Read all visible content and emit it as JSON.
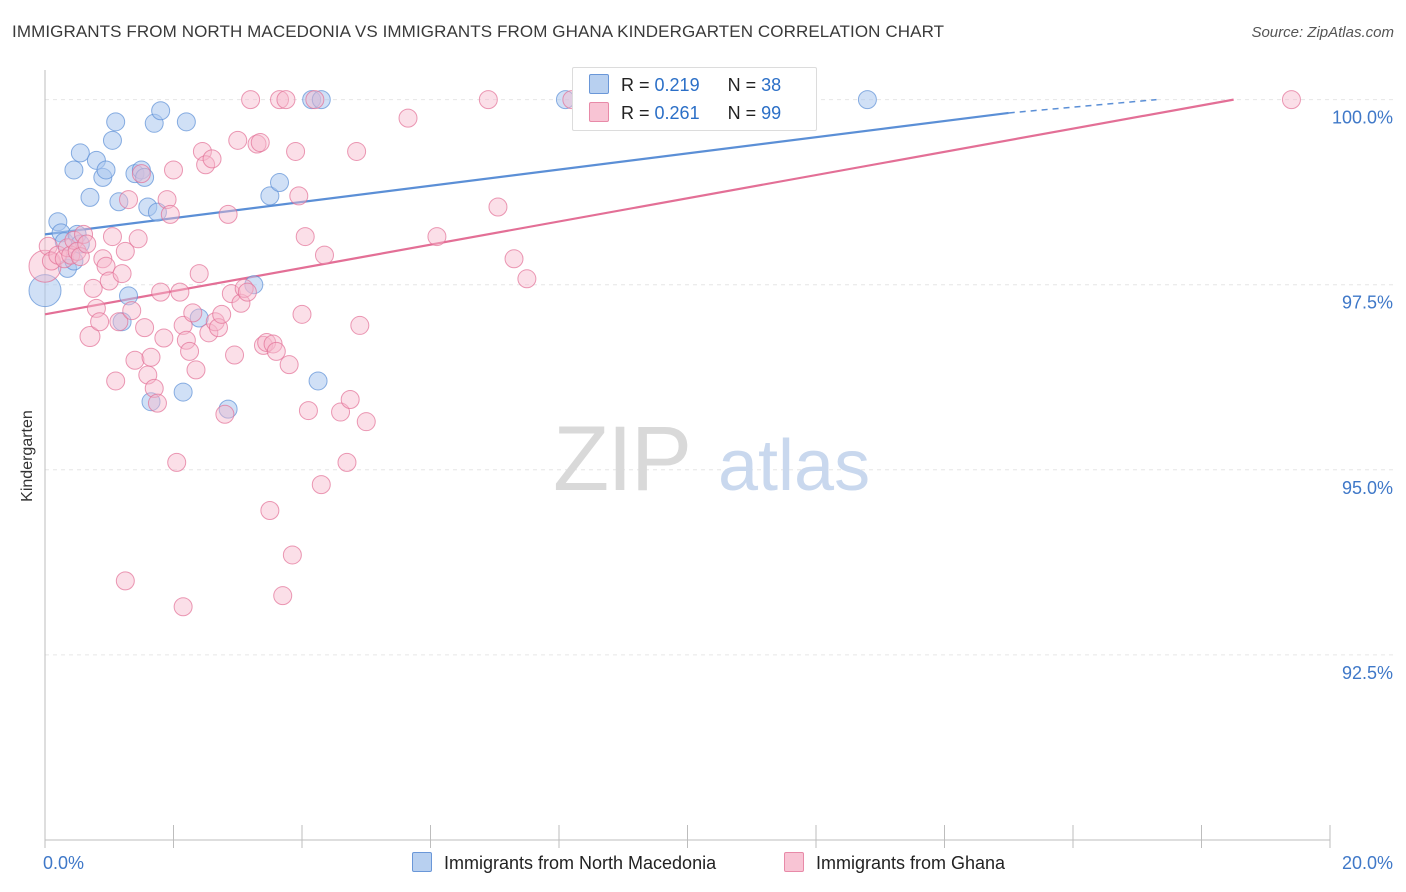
{
  "chart_data": {
    "type": "scatter",
    "title": "IMMIGRANTS FROM NORTH MACEDONIA VS IMMIGRANTS FROM GHANA KINDERGARTEN CORRELATION CHART",
    "source": "Source: ZipAtlas.com",
    "watermark": {
      "zip": "ZIP",
      "atlas": "atlas"
    },
    "ylabel": "Kindergarten",
    "xlim": [
      0,
      20
    ],
    "ylim": [
      90.0,
      100.4
    ],
    "x_tick_labels": {
      "left": "0.0%",
      "right": "20.0%"
    },
    "y_ticks": [
      {
        "value": 100.0,
        "label": "100.0%"
      },
      {
        "value": 97.5,
        "label": "97.5%"
      },
      {
        "value": 95.0,
        "label": "95.0%"
      },
      {
        "value": 92.5,
        "label": "92.5%"
      }
    ],
    "x_minor_ticks": [
      0,
      2,
      4,
      6,
      8,
      10,
      12,
      14,
      16,
      18,
      20
    ],
    "legend": {
      "rows": [
        {
          "r_label": "R =",
          "r_value": "0.219",
          "n_label": "N =",
          "n_value": "38"
        },
        {
          "r_label": "R =",
          "r_value": "0.261",
          "n_label": "N =",
          "n_value": "99"
        }
      ]
    },
    "series": [
      {
        "name": "Immigrants from North Macedonia",
        "color": "#5b8fd6",
        "fill": "#a9c6ef",
        "trend": {
          "x0": 0,
          "y0": 98.18,
          "x1": 15.0,
          "y1": 99.82,
          "dash_to_x": 17.3,
          "dash_to_y": 100.0
        },
        "points": [
          [
            0.0,
            97.42,
            16
          ],
          [
            0.2,
            98.35,
            9
          ],
          [
            0.25,
            98.2,
            9
          ],
          [
            0.3,
            98.08,
            9
          ],
          [
            0.35,
            97.72,
            9
          ],
          [
            0.45,
            97.82,
            9
          ],
          [
            0.5,
            98.18,
            9
          ],
          [
            0.55,
            98.05,
            9
          ],
          [
            0.45,
            99.05,
            9
          ],
          [
            0.55,
            99.28,
            9
          ],
          [
            0.7,
            98.68,
            9
          ],
          [
            0.8,
            99.18,
            9
          ],
          [
            0.9,
            98.95,
            9
          ],
          [
            0.95,
            99.05,
            9
          ],
          [
            1.05,
            99.45,
            9
          ],
          [
            1.1,
            99.7,
            9
          ],
          [
            1.15,
            98.62,
            9
          ],
          [
            1.2,
            97.0,
            9
          ],
          [
            1.3,
            97.35,
            9
          ],
          [
            1.4,
            99.0,
            9
          ],
          [
            1.5,
            99.05,
            9
          ],
          [
            1.55,
            98.95,
            9
          ],
          [
            1.6,
            98.55,
            9
          ],
          [
            1.65,
            95.92,
            9
          ],
          [
            1.75,
            98.48,
            9
          ],
          [
            1.7,
            99.68,
            9
          ],
          [
            1.8,
            99.85,
            9
          ],
          [
            2.15,
            96.05,
            9
          ],
          [
            2.2,
            99.7,
            9
          ],
          [
            2.4,
            97.05,
            9
          ],
          [
            2.85,
            95.82,
            9
          ],
          [
            3.25,
            97.5,
            9
          ],
          [
            3.5,
            98.7,
            9
          ],
          [
            3.65,
            98.88,
            9
          ],
          [
            4.15,
            100.0,
            9
          ],
          [
            4.3,
            100.0,
            9
          ],
          [
            4.25,
            96.2,
            9
          ],
          [
            8.1,
            100.0,
            9
          ],
          [
            12.8,
            100.0,
            9
          ]
        ]
      },
      {
        "name": "Immigrants from Ghana",
        "color": "#e36f96",
        "fill": "#f6b8cb",
        "trend": {
          "x0": 0,
          "y0": 97.1,
          "x1": 18.5,
          "y1": 100.0
        },
        "points": [
          [
            0.0,
            97.75,
            16
          ],
          [
            0.05,
            98.02,
            9
          ],
          [
            0.1,
            97.82,
            9
          ],
          [
            0.2,
            97.9,
            9
          ],
          [
            0.3,
            97.85,
            9
          ],
          [
            0.35,
            98.0,
            9
          ],
          [
            0.4,
            97.9,
            9
          ],
          [
            0.45,
            98.1,
            9
          ],
          [
            0.5,
            97.95,
            9
          ],
          [
            0.55,
            97.88,
            9
          ],
          [
            0.6,
            98.18,
            9
          ],
          [
            0.65,
            98.05,
            9
          ],
          [
            0.7,
            96.8,
            10
          ],
          [
            0.75,
            97.45,
            9
          ],
          [
            0.8,
            97.18,
            9
          ],
          [
            0.85,
            97.0,
            9
          ],
          [
            0.9,
            97.85,
            9
          ],
          [
            0.95,
            97.75,
            9
          ],
          [
            1.0,
            97.55,
            9
          ],
          [
            1.05,
            98.15,
            9
          ],
          [
            1.1,
            96.2,
            9
          ],
          [
            1.15,
            97.0,
            9
          ],
          [
            1.2,
            97.65,
            9
          ],
          [
            1.25,
            97.95,
            9
          ],
          [
            1.3,
            98.65,
            9
          ],
          [
            1.35,
            97.15,
            9
          ],
          [
            1.4,
            96.48,
            9
          ],
          [
            1.45,
            98.12,
            9
          ],
          [
            1.5,
            99.0,
            9
          ],
          [
            1.55,
            96.92,
            9
          ],
          [
            1.6,
            96.28,
            9
          ],
          [
            1.65,
            96.52,
            9
          ],
          [
            1.7,
            96.1,
            9
          ],
          [
            1.75,
            95.9,
            9
          ],
          [
            1.8,
            97.4,
            9
          ],
          [
            1.85,
            96.78,
            9
          ],
          [
            1.9,
            98.65,
            9
          ],
          [
            1.95,
            98.45,
            9
          ],
          [
            2.0,
            99.05,
            9
          ],
          [
            2.05,
            95.1,
            9
          ],
          [
            2.1,
            97.4,
            9
          ],
          [
            2.15,
            96.95,
            9
          ],
          [
            2.2,
            96.75,
            9
          ],
          [
            2.25,
            96.6,
            9
          ],
          [
            2.3,
            97.12,
            9
          ],
          [
            2.35,
            96.35,
            9
          ],
          [
            2.4,
            97.65,
            9
          ],
          [
            2.45,
            99.3,
            9
          ],
          [
            2.5,
            99.12,
            9
          ],
          [
            2.55,
            96.85,
            9
          ],
          [
            2.6,
            99.2,
            9
          ],
          [
            2.65,
            97.0,
            9
          ],
          [
            2.7,
            96.92,
            9
          ],
          [
            2.75,
            97.1,
            9
          ],
          [
            2.8,
            95.75,
            9
          ],
          [
            2.85,
            98.45,
            9
          ],
          [
            2.9,
            97.38,
            9
          ],
          [
            2.95,
            96.55,
            9
          ],
          [
            3.0,
            99.45,
            9
          ],
          [
            3.05,
            97.25,
            9
          ],
          [
            3.1,
            97.45,
            9
          ],
          [
            3.15,
            97.4,
            9
          ],
          [
            3.2,
            100.0,
            9
          ],
          [
            3.3,
            99.4,
            9
          ],
          [
            3.35,
            99.42,
            9
          ],
          [
            3.4,
            96.68,
            9
          ],
          [
            3.45,
            96.72,
            9
          ],
          [
            3.5,
            94.45,
            9
          ],
          [
            3.55,
            96.7,
            9
          ],
          [
            3.6,
            96.6,
            9
          ],
          [
            3.65,
            100.0,
            9
          ],
          [
            3.7,
            93.3,
            9
          ],
          [
            3.75,
            100.0,
            9
          ],
          [
            3.8,
            96.42,
            9
          ],
          [
            3.85,
            93.85,
            9
          ],
          [
            3.9,
            99.3,
            9
          ],
          [
            3.95,
            98.7,
            9
          ],
          [
            4.0,
            97.1,
            9
          ],
          [
            4.05,
            98.15,
            9
          ],
          [
            4.1,
            95.8,
            9
          ],
          [
            4.2,
            100.0,
            9
          ],
          [
            4.3,
            94.8,
            9
          ],
          [
            4.35,
            97.9,
            9
          ],
          [
            4.6,
            95.78,
            9
          ],
          [
            4.7,
            95.1,
            9
          ],
          [
            4.75,
            95.95,
            9
          ],
          [
            4.85,
            99.3,
            9
          ],
          [
            4.9,
            96.95,
            9
          ],
          [
            5.0,
            95.65,
            9
          ],
          [
            5.65,
            99.75,
            9
          ],
          [
            6.1,
            98.15,
            9
          ],
          [
            6.9,
            100.0,
            9
          ],
          [
            7.05,
            98.55,
            9
          ],
          [
            7.3,
            97.85,
            9
          ],
          [
            7.5,
            97.58,
            9
          ],
          [
            8.2,
            100.0,
            9
          ],
          [
            8.35,
            100.0,
            9
          ],
          [
            1.25,
            93.5,
            9
          ],
          [
            2.15,
            93.15,
            9
          ],
          [
            19.4,
            100.0,
            9
          ]
        ]
      }
    ]
  }
}
